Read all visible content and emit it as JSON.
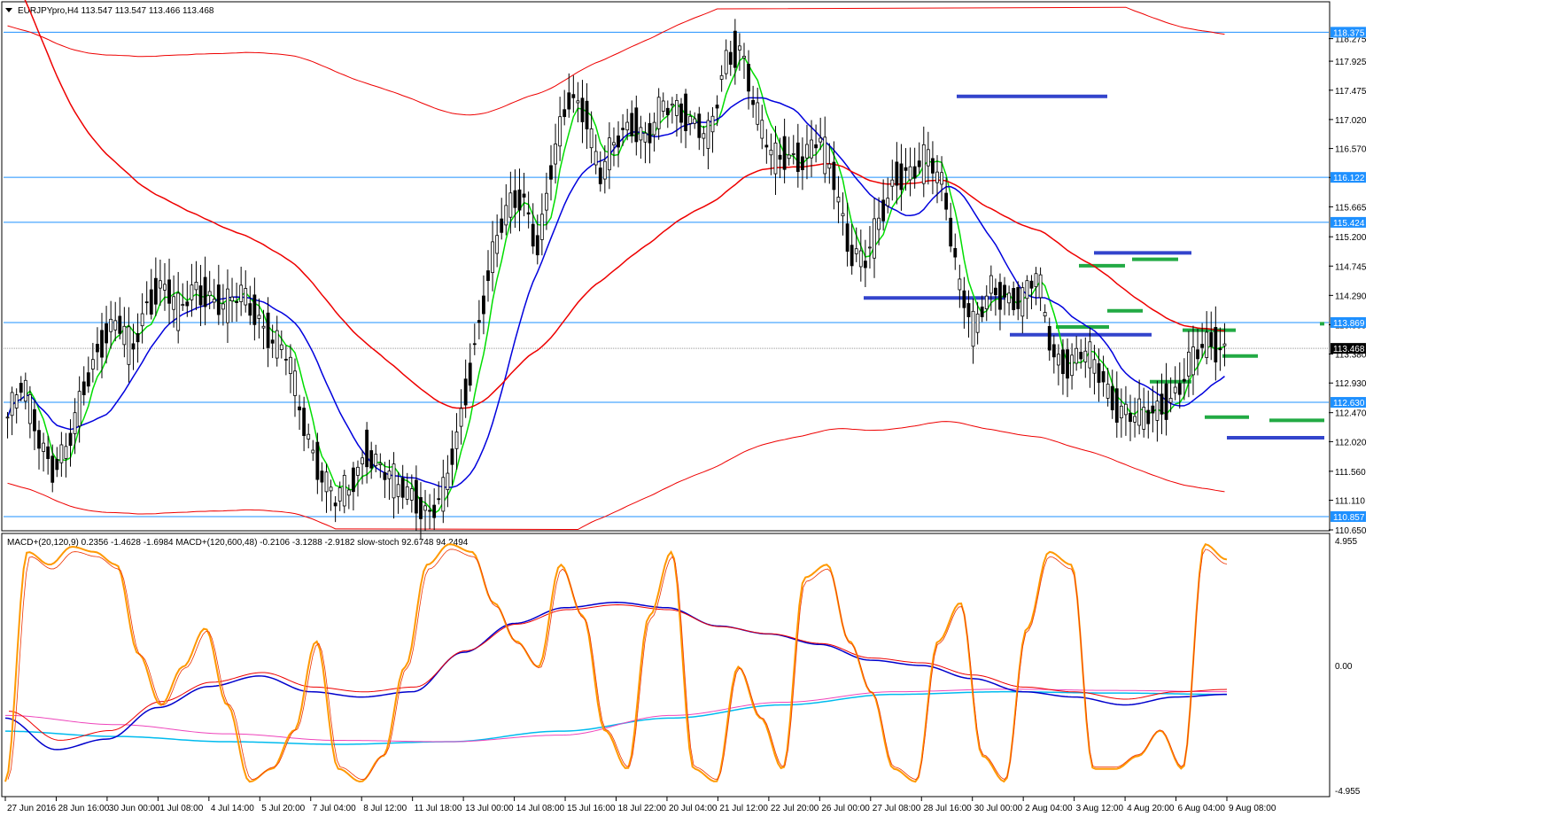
{
  "header": {
    "symbol_info": "EURJPYpro,H4  113.547 113.547 113.466 113.468",
    "indicator_info": "MACD+(20,120,9) 0.2356 -1.4628 -1.6984  MACD+(120,600,48) -0.2106 -3.1288 -2.9182  slow-stoch 92.6748 94.2494"
  },
  "colors": {
    "fast_ma": "#00dd00",
    "slow_ma": "#0000dd",
    "long_ma": "#ee0000",
    "envelope": "#ee0000",
    "hline": "#1e90ff",
    "blue_level": "#3344cc",
    "green_level": "#22aa44",
    "stoch_main": "#ff9900",
    "stoch_signal": "#ee3300",
    "macd_blue": "#0000cc",
    "macd_red": "#ee0000",
    "macd_cyan": "#00bbee",
    "macd_pink": "#ee44bb"
  },
  "chart_data": [
    {
      "type": "candlestick",
      "timeframe": "H4",
      "ylim": [
        110.65,
        118.6
      ],
      "y_ticks": [
        118.275,
        117.925,
        117.475,
        117.02,
        116.57,
        116.12,
        115.665,
        115.2,
        114.745,
        114.29,
        113.835,
        113.38,
        112.93,
        112.47,
        112.02,
        111.56,
        111.11,
        110.65
      ],
      "x_labels": [
        "27 Jun 2016",
        "28 Jun 16:00",
        "30 Jun 00:00",
        "1 Jul 08:00",
        "4 Jul 14:00",
        "5 Jul 20:00",
        "7 Jul 04:00",
        "8 Jul 12:00",
        "11 Jul 18:00",
        "13 Jul 00:00",
        "14 Jul 08:00",
        "15 Jul 16:00",
        "18 Jul 22:00",
        "20 Jul 04:00",
        "21 Jul 12:00",
        "22 Jul 20:00",
        "26 Jul 00:00",
        "27 Jul 08:00",
        "28 Jul 16:00",
        "30 Jul 00:00",
        "2 Aug 04:00",
        "3 Aug 12:00",
        "4 Aug 20:00",
        "6 Aug 04:00",
        "9 Aug 08:00"
      ],
      "horizontal_levels": [
        118.375,
        116.122,
        115.424,
        113.869,
        113.468,
        112.63,
        110.857
      ],
      "current_price": 113.468,
      "close_path": [
        112.4,
        112.9,
        112.1,
        111.6,
        112.0,
        112.9,
        113.6,
        113.9,
        113.4,
        114.2,
        114.5,
        114.0,
        114.4,
        114.3,
        114.1,
        114.3,
        114.0,
        113.6,
        113.3,
        112.3,
        111.6,
        111.1,
        111.3,
        111.9,
        111.6,
        111.3,
        111.2,
        110.9,
        111.2,
        112.3,
        113.6,
        114.8,
        115.6,
        115.9,
        115.0,
        116.4,
        117.4,
        117.2,
        116.1,
        116.7,
        117.0,
        116.7,
        117.2,
        117.2,
        117.0,
        116.7,
        117.9,
        118.2,
        117.1,
        116.4,
        116.5,
        116.4,
        116.7,
        116.1,
        115.0,
        114.8,
        115.5,
        116.2,
        116.2,
        116.4,
        116.0,
        114.5,
        113.7,
        114.4,
        114.3,
        114.2,
        114.6,
        113.4,
        113.2,
        113.4,
        113.1,
        112.6,
        112.4,
        112.4,
        112.6,
        112.8,
        113.3,
        113.6,
        113.468
      ],
      "overlay_lines": [
        "fast MA (green)",
        "slow MA (blue)",
        "long MA (red)",
        "envelope bands (thin red)"
      ],
      "support_resistance_marks": [
        {
          "color": "blue",
          "price": 117.38
        },
        {
          "color": "blue",
          "price": 114.25
        },
        {
          "color": "blue",
          "price": 113.68
        },
        {
          "color": "blue",
          "price": 114.95
        },
        {
          "color": "blue",
          "price": 112.08
        },
        {
          "color": "green",
          "price": 114.75
        },
        {
          "color": "green",
          "price": 114.85
        },
        {
          "color": "green",
          "price": 113.8
        },
        {
          "color": "green",
          "price": 114.05
        },
        {
          "color": "green",
          "price": 113.75
        },
        {
          "color": "green",
          "price": 113.35
        },
        {
          "color": "green",
          "price": 112.95
        },
        {
          "color": "green",
          "price": 112.4
        },
        {
          "color": "green",
          "price": 112.35
        },
        {
          "color": "green",
          "price": 113.85
        }
      ]
    },
    {
      "type": "line",
      "name_text": "MACD+ / slow-stoch",
      "ylim": [
        -4.955,
        4.955
      ],
      "y_ticks": [
        "4.955",
        "0.00",
        "-4.955"
      ],
      "stoch_path": [
        0.05,
        0.95,
        0.9,
        0.97,
        0.95,
        0.9,
        0.55,
        0.35,
        0.5,
        0.65,
        0.35,
        0.05,
        0.1,
        0.25,
        0.6,
        0.1,
        0.05,
        0.15,
        0.5,
        0.9,
        0.98,
        0.95,
        0.75,
        0.6,
        0.5,
        0.9,
        0.7,
        0.25,
        0.1,
        0.7,
        0.95,
        0.1,
        0.05,
        0.5,
        0.3,
        0.1,
        0.85,
        0.9,
        0.6,
        0.4,
        0.1,
        0.05,
        0.6,
        0.75,
        0.15,
        0.05,
        0.65,
        0.95,
        0.9,
        0.1,
        0.1,
        0.15,
        0.25,
        0.1,
        0.98,
        0.92
      ],
      "macd_fast_path": [
        -2.0,
        -3.2,
        -2.8,
        -1.6,
        -0.8,
        -0.4,
        -1.0,
        -1.2,
        -1.0,
        0.5,
        1.6,
        2.2,
        2.4,
        2.2,
        1.5,
        1.2,
        0.8,
        0.2,
        0.0,
        -0.5,
        -1.0,
        -1.2,
        -1.5,
        -1.2,
        -1.1
      ],
      "macd_slow_path": [
        -2.5,
        -2.7,
        -2.9,
        -3.0,
        -2.9,
        -2.5,
        -2.0,
        -1.5,
        -1.1,
        -1.0,
        -1.05,
        -1.1
      ]
    }
  ]
}
